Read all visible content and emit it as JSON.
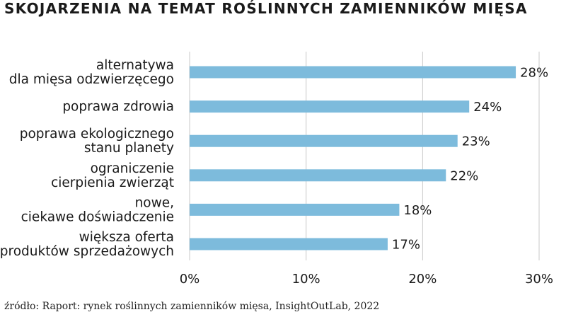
{
  "title": "SKOJARZENIA NA TEMAT ROŚLINNYCH ZAMIENNIKÓW MIĘSA",
  "source": "źródło: Raport: rynek roślinnych zamienników mięsa, InsightOutLab, 2022",
  "colors": {
    "bar": "#7dbbdc",
    "grid": "#c8c8c8",
    "text": "#1a1a1a"
  },
  "chart_data": {
    "type": "bar",
    "orientation": "horizontal",
    "categories": [
      [
        "alternatywa",
        "dla mięsa odzwierzęcego"
      ],
      [
        "poprawa zdrowia"
      ],
      [
        "poprawa ekologicznego",
        "stanu planety"
      ],
      [
        "ograniczenie",
        "cierpienia zwierząt"
      ],
      [
        "nowe,",
        "ciekawe doświadczenie"
      ],
      [
        "większa oferta",
        "produktów sprzedażowych"
      ]
    ],
    "values": [
      28,
      24,
      23,
      22,
      18,
      17
    ],
    "value_labels": [
      "28%",
      "24%",
      "23%",
      "22%",
      "18%",
      "17%"
    ],
    "xlim": [
      0,
      30
    ],
    "xticks": [
      0,
      10,
      20,
      30
    ],
    "xtick_labels": [
      "0%",
      "10%",
      "20%",
      "30%"
    ],
    "grid": "vertical"
  }
}
